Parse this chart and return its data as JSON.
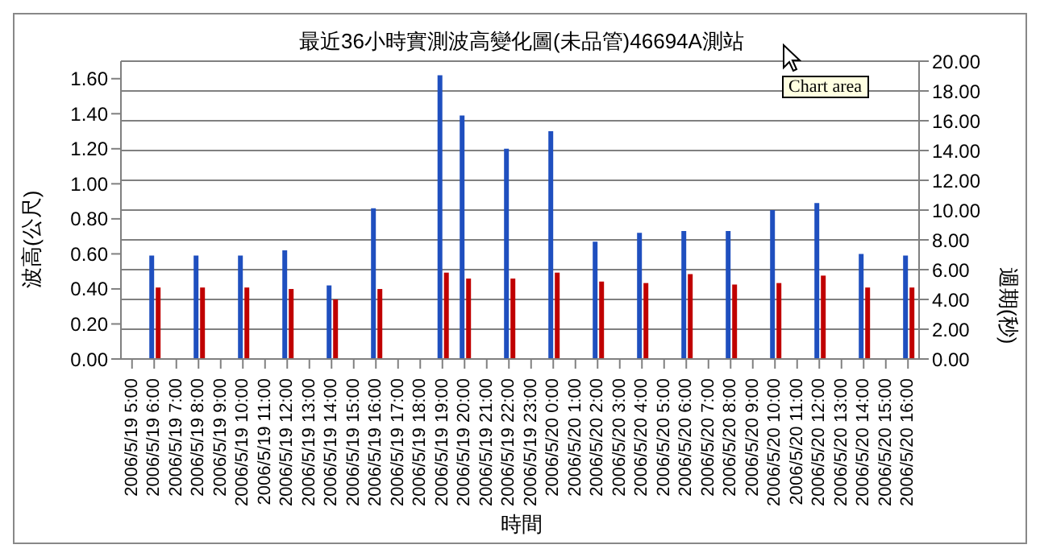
{
  "chart_data": {
    "type": "bar",
    "title": "最近36小時實測波高變化圖(未品管)46694A測站",
    "xlabel": "時間",
    "ylabel": "波高(公尺)",
    "y2label": "週期(秒)",
    "annotations": [
      "Chart area"
    ],
    "categories": [
      "2006/5/19 5:00",
      "2006/5/19 6:00",
      "2006/5/19 7:00",
      "2006/5/19 8:00",
      "2006/5/19 9:00",
      "2006/5/19 10:00",
      "2006/5/19 11:00",
      "2006/5/19 12:00",
      "2006/5/19 13:00",
      "2006/5/19 14:00",
      "2006/5/19 15:00",
      "2006/5/19 16:00",
      "2006/5/19 17:00",
      "2006/5/19 18:00",
      "2006/5/19 19:00",
      "2006/5/19 20:00",
      "2006/5/19 21:00",
      "2006/5/19 22:00",
      "2006/5/19 23:00",
      "2006/5/20 0:00",
      "2006/5/20 1:00",
      "2006/5/20 2:00",
      "2006/5/20 3:00",
      "2006/5/20 4:00",
      "2006/5/20 5:00",
      "2006/5/20 6:00",
      "2006/5/20 7:00",
      "2006/5/20 8:00",
      "2006/5/20 9:00",
      "2006/5/20 10:00",
      "2006/5/20 11:00",
      "2006/5/20 12:00",
      "2006/5/20 13:00",
      "2006/5/20 14:00",
      "2006/5/20 15:00",
      "2006/5/20 16:00"
    ],
    "series": [
      {
        "color": "#1f4fbf",
        "values": [
          null,
          0.59,
          null,
          0.59,
          null,
          0.59,
          null,
          0.62,
          null,
          0.42,
          null,
          0.86,
          null,
          null,
          1.62,
          1.39,
          null,
          1.2,
          null,
          1.3,
          null,
          0.67,
          null,
          0.72,
          null,
          0.73,
          null,
          0.73,
          null,
          0.85,
          null,
          0.89,
          null,
          0.6,
          null,
          0.59
        ]
      },
      {
        "color": "#c00000",
        "axis": "y2",
        "values": [
          null,
          4.8,
          null,
          4.8,
          null,
          4.8,
          null,
          4.7,
          null,
          4.0,
          null,
          4.7,
          null,
          null,
          5.8,
          5.4,
          null,
          5.4,
          null,
          5.8,
          null,
          5.2,
          null,
          5.1,
          null,
          5.7,
          null,
          5.0,
          null,
          5.1,
          null,
          5.6,
          null,
          4.8,
          null,
          4.8
        ]
      }
    ],
    "ylim": [
      0,
      1.7
    ],
    "yticks": [
      {
        "value": 0,
        "label": "0.00"
      },
      {
        "value": 0.2,
        "label": "0.20"
      },
      {
        "value": 0.4,
        "label": "0.40"
      },
      {
        "value": 0.6,
        "label": "0.60"
      },
      {
        "value": 0.8,
        "label": "0.80"
      },
      {
        "value": 1,
        "label": "1.00"
      },
      {
        "value": 1.2,
        "label": "1.20"
      },
      {
        "value": 1.4,
        "label": "1.40"
      },
      {
        "value": 1.6,
        "label": "1.60"
      }
    ],
    "y2lim": [
      0,
      20
    ],
    "y2ticks": [
      {
        "value": 0,
        "label": "0.00"
      },
      {
        "value": 2,
        "label": "2.00"
      },
      {
        "value": 4,
        "label": "4.00"
      },
      {
        "value": 6,
        "label": "6.00"
      },
      {
        "value": 8,
        "label": "8.00"
      },
      {
        "value": 10,
        "label": "10.00"
      },
      {
        "value": 12,
        "label": "12.00"
      },
      {
        "value": 14,
        "label": "14.00"
      },
      {
        "value": 16,
        "label": "16.00"
      },
      {
        "value": 18,
        "label": "18.00"
      },
      {
        "value": 20,
        "label": "20.00"
      }
    ],
    "grid": "y",
    "legend": false
  }
}
